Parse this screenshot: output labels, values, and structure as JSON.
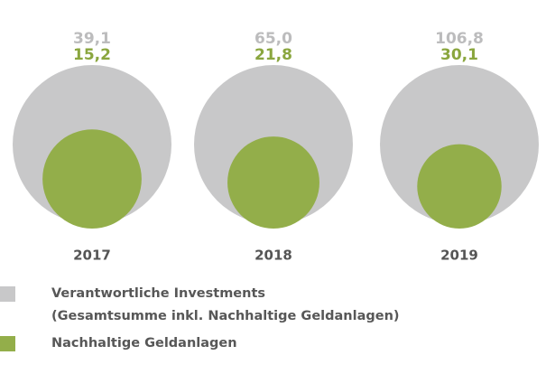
{
  "chart_data": {
    "type": "nested-bubble",
    "categories": [
      "2017",
      "2018",
      "2019"
    ],
    "series": [
      {
        "name": "Verantwortliche Investments\n(Gesamtsumme inkl. Nachhaltige Geldanlagen)",
        "color": "#c8c8c9",
        "label_color": "#bcbcbd",
        "values": [
          39.1,
          65.0,
          106.8
        ],
        "value_labels": [
          "39,1",
          "65,0",
          "106,8"
        ]
      },
      {
        "name": "Nachhaltige Geldanlagen",
        "color": "#93ae4a",
        "label_color": "#8aa63e",
        "values": [
          15.2,
          21.8,
          30.1
        ],
        "value_labels": [
          "15,2",
          "21,8",
          "30,1"
        ]
      }
    ]
  }
}
